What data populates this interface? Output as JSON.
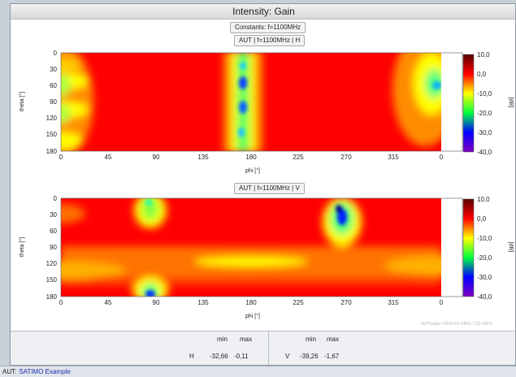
{
  "window": {
    "title": "Intensity: Gain"
  },
  "constants_label": "Constants: f=1100MHz",
  "plots": [
    {
      "label": "AUT | f=1100MHz | H",
      "polarization": "H"
    },
    {
      "label": "AUT | f=1100MHz | V",
      "polarization": "V"
    }
  ],
  "axes": {
    "xlabel": "phi [°]",
    "ylabel": "theta [°]",
    "xticks": [
      "0",
      "45",
      "90",
      "135",
      "180",
      "225",
      "270",
      "315",
      "0"
    ],
    "yticks": [
      "0",
      "30",
      "60",
      "90",
      "120",
      "150",
      "180"
    ]
  },
  "colorbar": {
    "label": "[dB] ​",
    "ticks": [
      "10,0",
      "0,0",
      "-10,0",
      "-20,0",
      "-30,0",
      "-40,0"
    ],
    "colors": [
      "#5a0000",
      "#ff0000",
      "#ffff00",
      "#00ff40",
      "#0000ff",
      "#8000c0"
    ]
  },
  "watermark": "AUTStudio V2018 R1 K909 / 132-000-0",
  "stats": {
    "min_label": "min",
    "max_label": "max",
    "h": {
      "name": "H",
      "min": "-32,66",
      "max": "-0,11"
    },
    "v": {
      "name": "V",
      "min": "-39,26",
      "max": "-1,67"
    }
  },
  "status": {
    "key": "AUT:",
    "value": "SATIMO Example"
  },
  "chart_data": [
    {
      "type": "heatmap",
      "title": "AUT | f=1100MHz | H",
      "xlabel": "phi [°]",
      "ylabel": "theta [°]",
      "xlim": [
        0,
        360
      ],
      "ylim": [
        0,
        180
      ],
      "zlabel": "[dB]",
      "zlim": [
        -40,
        10
      ],
      "features": [
        {
          "phi": 0,
          "theta_range": [
            0,
            180
          ],
          "level_db": -10
        },
        {
          "phi": 170,
          "theta_range": [
            0,
            180
          ],
          "level_db": -20
        },
        {
          "phi": 170,
          "theta": 50,
          "level_db": -30
        },
        {
          "phi": 170,
          "theta": 100,
          "level_db": -30
        },
        {
          "phi": 340,
          "theta": 55,
          "level_db": -22
        }
      ]
    },
    {
      "type": "heatmap",
      "title": "AUT | f=1100MHz | V",
      "xlabel": "phi [°]",
      "ylabel": "theta [°]",
      "xlim": [
        0,
        360
      ],
      "ylim": [
        0,
        180
      ],
      "zlabel": "[dB]",
      "zlim": [
        -40,
        10
      ],
      "features": [
        {
          "phi": 85,
          "theta": 10,
          "level_db": -15
        },
        {
          "phi": 260,
          "theta": 30,
          "level_db": -35
        },
        {
          "phi": 85,
          "theta": 175,
          "level_db": -35
        },
        {
          "phi": 180,
          "theta": 120,
          "level_db": -10
        }
      ]
    }
  ]
}
